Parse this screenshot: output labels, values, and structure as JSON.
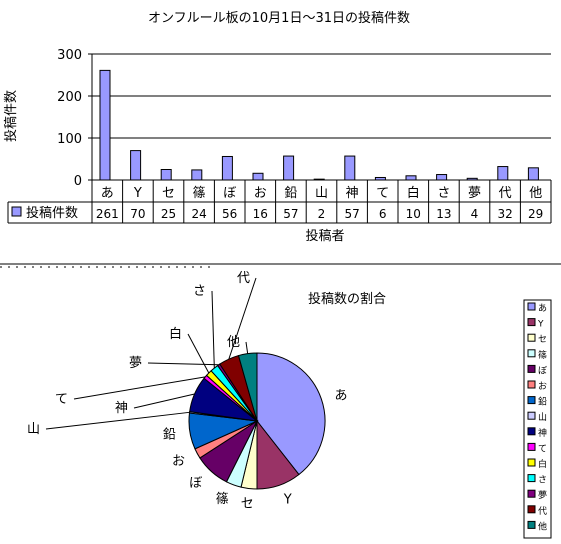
{
  "chart_data": [
    {
      "type": "bar",
      "title": "オンフルール板の10月1日～31日の投稿件数",
      "xlabel": "投稿者",
      "ylabel": "投稿件数",
      "ylim": [
        0,
        300
      ],
      "yticks": [
        "0",
        "100",
        "200",
        "300"
      ],
      "grid": true,
      "legend": "bottom-left",
      "categories": [
        "あ",
        "Y",
        "セ",
        "篠",
        "ぼ",
        "お",
        "鉛",
        "山",
        "神",
        "て",
        "白",
        "さ",
        "夢",
        "代",
        "他"
      ],
      "series": [
        {
          "name": "投稿件数",
          "color": "#9999ff",
          "values": [
            261,
            70,
            25,
            24,
            56,
            16,
            57,
            2,
            57,
            6,
            10,
            13,
            4,
            32,
            29
          ]
        }
      ],
      "table_values": [
        "261",
        "70",
        "25",
        "24",
        "56",
        "16",
        "57",
        "2",
        "57",
        "6",
        "10",
        "13",
        "4",
        "32",
        "29"
      ]
    },
    {
      "type": "pie",
      "title": "投稿数の割合",
      "legend": "right",
      "labels": [
        "あ",
        "Y",
        "セ",
        "篠",
        "ぼ",
        "お",
        "鉛",
        "山",
        "神",
        "て",
        "白",
        "さ",
        "夢",
        "代",
        "他"
      ],
      "values": [
        261,
        70,
        25,
        24,
        56,
        16,
        57,
        2,
        57,
        6,
        10,
        13,
        4,
        32,
        29
      ],
      "colors": [
        "#9999ff",
        "#993366",
        "#ffffcc",
        "#ccffff",
        "#660066",
        "#ff8080",
        "#0066cc",
        "#ccccff",
        "#000080",
        "#ff00ff",
        "#ffff00",
        "#00ffff",
        "#800080",
        "#800000",
        "#008080"
      ]
    }
  ]
}
